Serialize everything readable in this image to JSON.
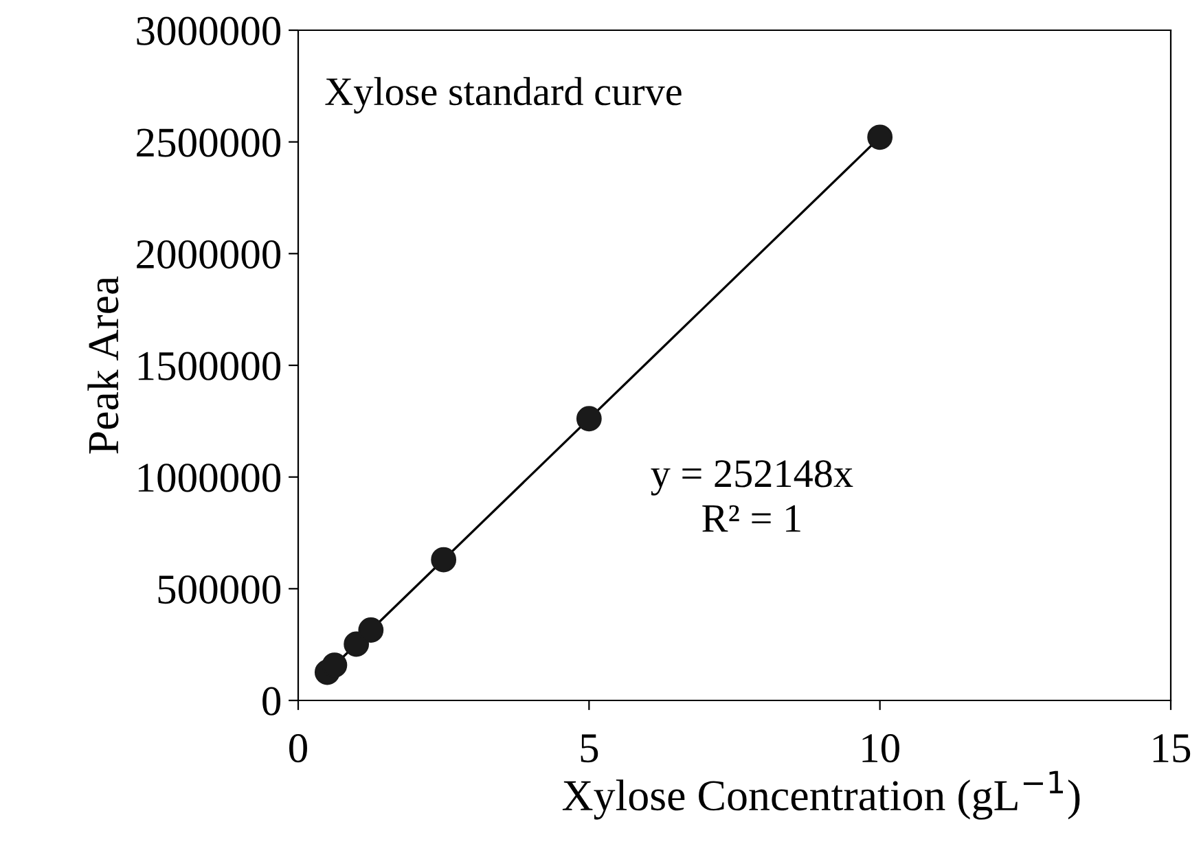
{
  "chart_data": {
    "type": "scatter",
    "xlabel": "Xylose Concentration (gL$^{−1}$)",
    "ylabel": "Peak Area",
    "xlim": [
      0,
      15
    ],
    "xticks": [
      0,
      5,
      10,
      15
    ],
    "ylim": [
      0,
      3000000
    ],
    "yticks": [
      0,
      500000,
      1000000,
      1500000,
      2000000,
      2500000,
      3000000
    ],
    "grid": false,
    "legend": false,
    "annotations": [
      "Xylose standard curve",
      "y = 252148x\nR² = 1"
    ],
    "series": [
      {
        "marker": "circle",
        "color": "#1a1a1a",
        "x": [
          0.5,
          0.625,
          1,
          1.25,
          2.5,
          5,
          10
        ],
        "values": [
          126000,
          158000,
          252000,
          315000,
          630000,
          1261000,
          2521000
        ]
      },
      {
        "type": "line",
        "color": "#000000",
        "line_style": "solid",
        "x": [
          0.5,
          10
        ],
        "values": [
          126000,
          2521000
        ]
      }
    ]
  }
}
